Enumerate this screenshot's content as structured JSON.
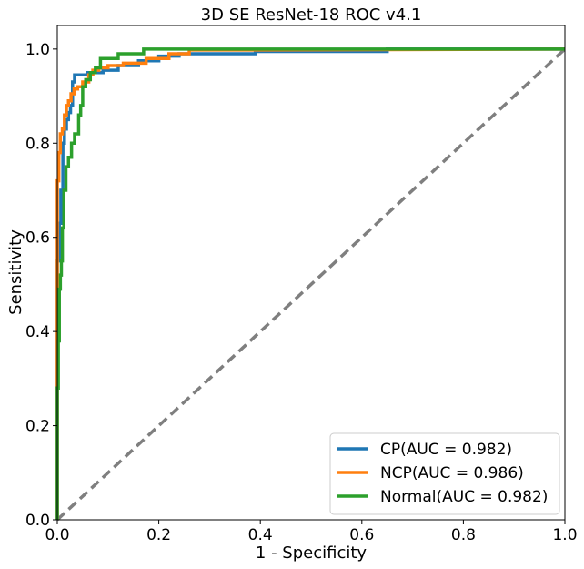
{
  "chart_data": {
    "type": "line",
    "title": "3D SE ResNet-18 ROC v4.1",
    "xlabel": "1 - Specificity",
    "ylabel": "Sensitivity",
    "xlim": [
      0.0,
      1.0
    ],
    "ylim": [
      0.0,
      1.05
    ],
    "xticks": [
      "0.0",
      "0.2",
      "0.4",
      "0.6",
      "0.8",
      "1.0"
    ],
    "yticks": [
      "0.0",
      "0.2",
      "0.4",
      "0.6",
      "0.8",
      "1.0"
    ],
    "grid": false,
    "legend_position": "lower-right",
    "baseline": {
      "style": "dashed",
      "color": "#7f7f7f",
      "x": [
        0.0,
        1.0
      ],
      "y": [
        0.0,
        1.0
      ]
    },
    "series": [
      {
        "name": "CP(AUC = 0.982)",
        "color": "#1f77b4",
        "x": [
          0.0,
          0.0,
          0.004,
          0.004,
          0.007,
          0.007,
          0.011,
          0.011,
          0.014,
          0.014,
          0.018,
          0.018,
          0.022,
          0.022,
          0.026,
          0.026,
          0.03,
          0.03,
          0.034,
          0.034,
          0.06,
          0.06,
          0.09,
          0.09,
          0.12,
          0.12,
          0.16,
          0.16,
          0.2,
          0.2,
          0.24,
          0.24,
          0.39,
          0.39,
          0.65,
          0.65,
          1.0
        ],
        "y": [
          0.0,
          0.55,
          0.55,
          0.63,
          0.63,
          0.7,
          0.7,
          0.8,
          0.8,
          0.83,
          0.83,
          0.85,
          0.85,
          0.865,
          0.865,
          0.88,
          0.88,
          0.93,
          0.93,
          0.945,
          0.945,
          0.95,
          0.95,
          0.955,
          0.955,
          0.965,
          0.965,
          0.975,
          0.975,
          0.985,
          0.985,
          0.99,
          0.99,
          0.995,
          0.995,
          1.0,
          1.0
        ]
      },
      {
        "name": "NCP(AUC = 0.986)",
        "color": "#ff7f0e",
        "x": [
          0.0,
          0.0,
          0.003,
          0.003,
          0.006,
          0.006,
          0.01,
          0.01,
          0.014,
          0.014,
          0.018,
          0.018,
          0.022,
          0.022,
          0.027,
          0.027,
          0.033,
          0.033,
          0.04,
          0.04,
          0.05,
          0.05,
          0.062,
          0.062,
          0.07,
          0.07,
          0.082,
          0.082,
          0.1,
          0.1,
          0.13,
          0.13,
          0.175,
          0.175,
          0.22,
          0.22,
          0.26,
          0.26,
          0.395,
          1.0
        ],
        "y": [
          0.0,
          0.72,
          0.72,
          0.78,
          0.78,
          0.82,
          0.82,
          0.83,
          0.83,
          0.86,
          0.86,
          0.88,
          0.88,
          0.89,
          0.89,
          0.905,
          0.905,
          0.915,
          0.915,
          0.92,
          0.92,
          0.93,
          0.93,
          0.945,
          0.945,
          0.955,
          0.955,
          0.96,
          0.96,
          0.965,
          0.965,
          0.97,
          0.97,
          0.98,
          0.98,
          0.99,
          0.99,
          0.998,
          0.998,
          1.0
        ]
      },
      {
        "name": "Normal(AUC = 0.982)",
        "color": "#2ca02c",
        "x": [
          0.0,
          0.0,
          0.002,
          0.002,
          0.004,
          0.004,
          0.006,
          0.006,
          0.008,
          0.008,
          0.01,
          0.01,
          0.013,
          0.013,
          0.017,
          0.017,
          0.022,
          0.022,
          0.028,
          0.028,
          0.034,
          0.034,
          0.042,
          0.042,
          0.046,
          0.046,
          0.05,
          0.05,
          0.056,
          0.056,
          0.065,
          0.065,
          0.075,
          0.075,
          0.085,
          0.085,
          0.12,
          0.12,
          0.17,
          0.17,
          1.0
        ],
        "y": [
          0.0,
          0.28,
          0.28,
          0.38,
          0.38,
          0.49,
          0.49,
          0.52,
          0.52,
          0.55,
          0.55,
          0.62,
          0.62,
          0.7,
          0.7,
          0.75,
          0.75,
          0.77,
          0.77,
          0.8,
          0.8,
          0.82,
          0.82,
          0.86,
          0.86,
          0.88,
          0.88,
          0.92,
          0.92,
          0.935,
          0.935,
          0.95,
          0.95,
          0.96,
          0.96,
          0.98,
          0.98,
          0.99,
          0.99,
          1.0,
          1.0
        ]
      }
    ]
  }
}
